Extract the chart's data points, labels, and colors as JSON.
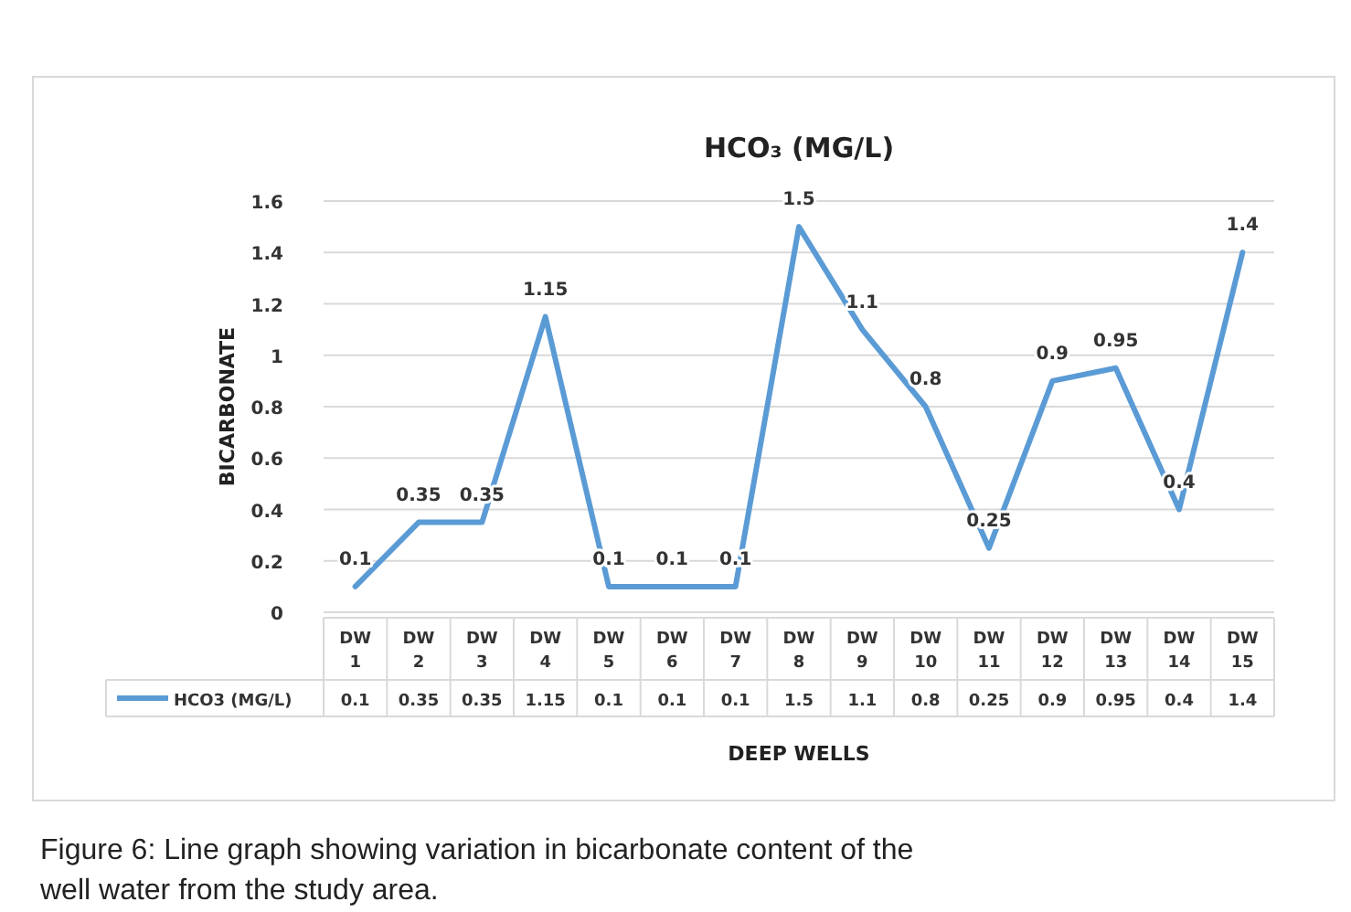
{
  "chart_data": {
    "type": "line",
    "title": "HCO₃ (MG/L)",
    "ylabel": "BICARBONATE",
    "xlabel": "DEEP WELLS",
    "categories": [
      "DW 1",
      "DW 2",
      "DW 3",
      "DW 4",
      "DW 5",
      "DW 6",
      "DW 7",
      "DW 8",
      "DW 9",
      "DW 10",
      "DW 11",
      "DW 12",
      "DW 13",
      "DW 14",
      "DW 15"
    ],
    "series": [
      {
        "name": "HCO3 (MG/L)",
        "color": "#5b9bd5",
        "values": [
          0.1,
          0.35,
          0.35,
          1.15,
          0.1,
          0.1,
          0.1,
          1.5,
          1.1,
          0.8,
          0.25,
          0.9,
          0.95,
          0.4,
          1.4
        ]
      }
    ],
    "ylim": [
      0,
      1.6
    ],
    "yticks": [
      0,
      0.2,
      0.4,
      0.6,
      0.8,
      1,
      1.2,
      1.4,
      1.6
    ],
    "grid": "y",
    "data_labels": true,
    "legend": "bottom",
    "marker": "none",
    "line_style": "solid",
    "annotations": [
      "0.1",
      "0.35",
      "0.35",
      "1.15",
      "0.1",
      "0.1",
      "0.1",
      "1.5",
      "1.1",
      "0.8",
      "0.25",
      "0.9",
      "0.95",
      "0.4",
      "1.4",
      "Figure 6: Line graph showing variation in bicarbonate content of the well water from the study area."
    ]
  }
}
